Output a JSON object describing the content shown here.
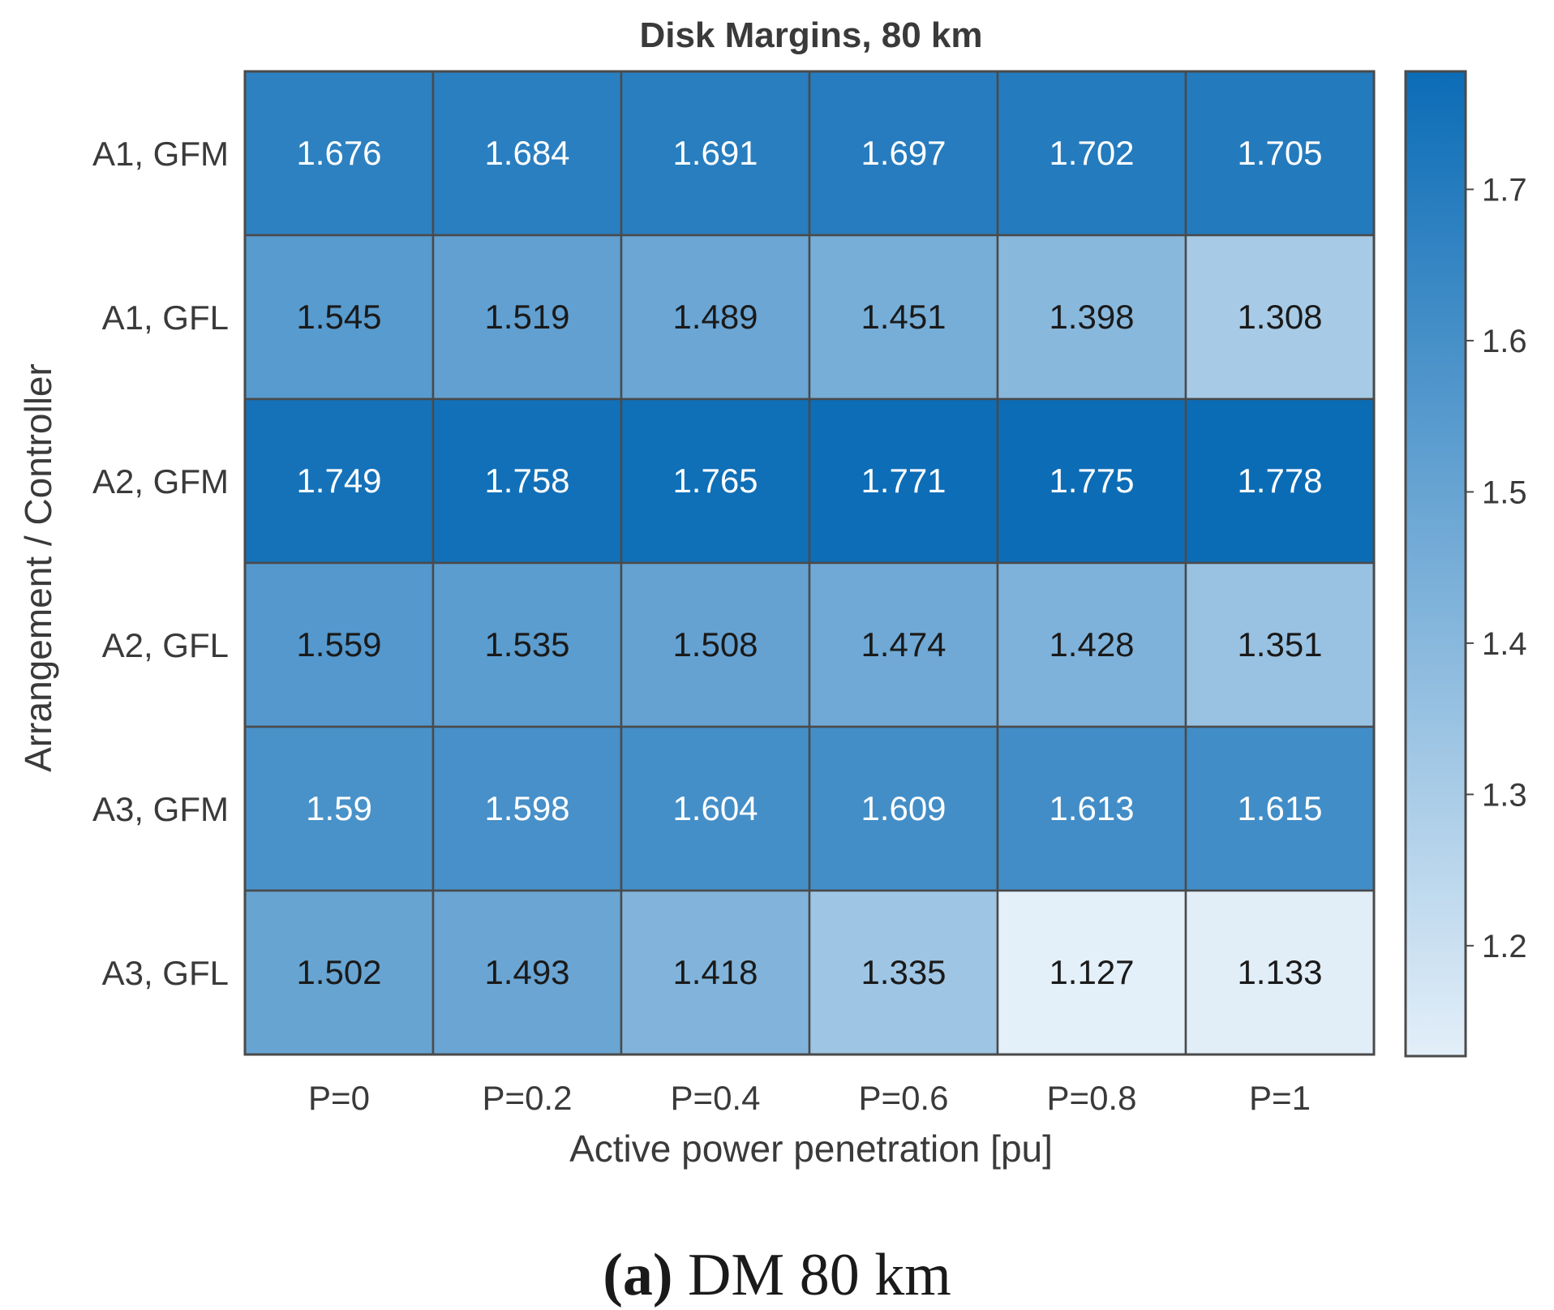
{
  "chart_data": {
    "type": "heatmap",
    "title": "Disk Margins, 80 km",
    "xlabel": "Active power penetration [pu]",
    "ylabel": "Arrangement / Controller",
    "x_categories": [
      "P=0",
      "P=0.2",
      "P=0.4",
      "P=0.6",
      "P=0.8",
      "P=1"
    ],
    "y_categories": [
      "A1, GFM",
      "A1, GFL",
      "A2, GFM",
      "A2, GFL",
      "A3, GFM",
      "A3, GFL"
    ],
    "values": [
      [
        1.676,
        1.684,
        1.691,
        1.697,
        1.702,
        1.705
      ],
      [
        1.545,
        1.519,
        1.489,
        1.451,
        1.398,
        1.308
      ],
      [
        1.749,
        1.758,
        1.765,
        1.771,
        1.775,
        1.778
      ],
      [
        1.559,
        1.535,
        1.508,
        1.474,
        1.428,
        1.351
      ],
      [
        1.59,
        1.598,
        1.604,
        1.609,
        1.613,
        1.615
      ],
      [
        1.502,
        1.493,
        1.418,
        1.335,
        1.127,
        1.133
      ]
    ],
    "value_labels": [
      [
        "1.676",
        "1.684",
        "1.691",
        "1.697",
        "1.702",
        "1.705"
      ],
      [
        "1.545",
        "1.519",
        "1.489",
        "1.451",
        "1.398",
        "1.308"
      ],
      [
        "1.749",
        "1.758",
        "1.765",
        "1.771",
        "1.775",
        "1.778"
      ],
      [
        "1.559",
        "1.535",
        "1.508",
        "1.474",
        "1.428",
        "1.351"
      ],
      [
        "1.59",
        "1.598",
        "1.604",
        "1.609",
        "1.613",
        "1.615"
      ],
      [
        "1.502",
        "1.493",
        "1.418",
        "1.335",
        "1.127",
        "1.133"
      ]
    ],
    "colorbar": {
      "range": [
        1.127,
        1.778
      ],
      "ticks": [
        1.2,
        1.3,
        1.4,
        1.5,
        1.6,
        1.7
      ],
      "tick_labels": [
        "1.2",
        "1.3",
        "1.4",
        "1.5",
        "1.6",
        "1.7"
      ],
      "color_low": "#e3eff9",
      "color_high": "#0b6cb6"
    },
    "text_color_dark": "#1a1a1a",
    "text_color_light": "#ffffff",
    "grid_color": "#4a4a4a"
  },
  "caption": {
    "label": "(a)",
    "text": "DM 80 km"
  }
}
